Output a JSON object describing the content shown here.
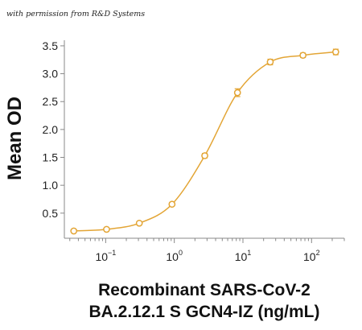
{
  "credit_text": "with permission from R&D Systems",
  "chart_data": {
    "type": "scatter",
    "title": "",
    "xlabel_lines": [
      "Recombinant SARS-CoV-2",
      "BA.2.12.1 S GCN4-IZ (ng/mL)"
    ],
    "ylabel": "Mean OD",
    "x_scale": "log",
    "xlim": [
      0.025,
      300
    ],
    "ylim": [
      0.05,
      3.6
    ],
    "x_ticks": [
      {
        "value": 0.1,
        "base": "10",
        "exp": "−1"
      },
      {
        "value": 1,
        "base": "10",
        "exp": "0"
      },
      {
        "value": 10,
        "base": "10",
        "exp": "1"
      },
      {
        "value": 100,
        "base": "10",
        "exp": "2"
      }
    ],
    "y_ticks": [
      "0.5",
      "1.0",
      "1.5",
      "2.0",
      "2.5",
      "3.0",
      "3.5"
    ],
    "grid": false,
    "legend": "none",
    "color": "#E3A535",
    "series": [
      {
        "x": [
          0.0343,
          0.103,
          0.309,
          0.926,
          2.78,
          8.33,
          25,
          75,
          225
        ],
        "y": [
          0.18,
          0.21,
          0.32,
          0.66,
          1.53,
          2.66,
          3.21,
          3.33,
          3.39
        ],
        "err": [
          0.02,
          0.02,
          0.02,
          0.03,
          0.04,
          0.07,
          0.05,
          0.04,
          0.05
        ]
      }
    ]
  }
}
